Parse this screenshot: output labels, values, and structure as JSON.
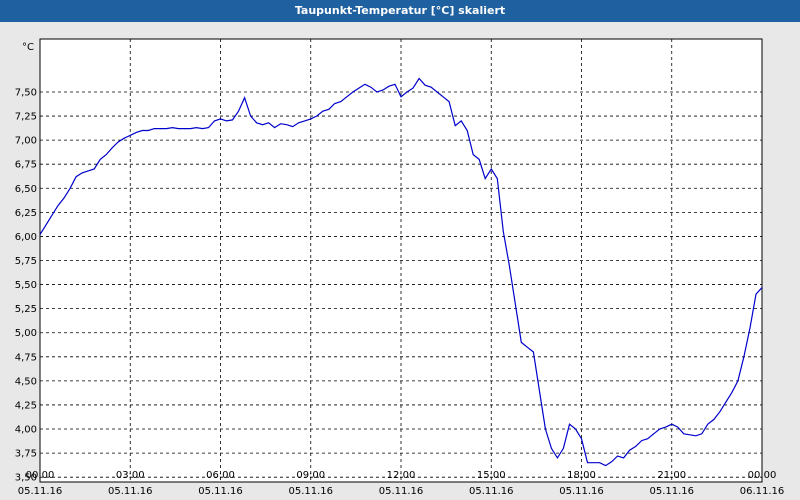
{
  "title": "Taupunkt-Temperatur [°C] skaliert",
  "colors": {
    "titlebar": "#1e60a0",
    "line": "#0000cc",
    "background": "#e8e8e8",
    "plot": "#ffffff"
  },
  "chart_data": {
    "type": "line",
    "title": "Taupunkt-Temperatur [°C] skaliert",
    "ylabel": "°C",
    "xlabel": "",
    "ylim": [
      3.45,
      8.05
    ],
    "xlim": [
      0,
      24
    ],
    "grid": true,
    "yticks": [
      "7,50",
      "7,25",
      "7,00",
      "6,75",
      "6,50",
      "6,25",
      "6,00",
      "5,75",
      "5,50",
      "5,25",
      "5,00",
      "4,75",
      "4,50",
      "4,25",
      "4,00",
      "3,75",
      "3,50"
    ],
    "ytick_values": [
      7.5,
      7.25,
      7.0,
      6.75,
      6.5,
      6.25,
      6.0,
      5.75,
      5.5,
      5.25,
      5.0,
      4.75,
      4.5,
      4.25,
      4.0,
      3.75,
      3.5
    ],
    "xticks": [
      {
        "time": "00:00",
        "date": "05.11.16"
      },
      {
        "time": "03:00",
        "date": "05.11.16"
      },
      {
        "time": "06:00",
        "date": "05.11.16"
      },
      {
        "time": "09:00",
        "date": "05.11.16"
      },
      {
        "time": "12:00",
        "date": "05.11.16"
      },
      {
        "time": "15:00",
        "date": "05.11.16"
      },
      {
        "time": "18:00",
        "date": "05.11.16"
      },
      {
        "time": "21:00",
        "date": "05.11.16"
      },
      {
        "time": "00:00",
        "date": "06.11.16"
      }
    ],
    "xtick_values": [
      0,
      3,
      6,
      9,
      12,
      15,
      18,
      21,
      24
    ],
    "series": [
      {
        "x": [
          0,
          0.2,
          0.4,
          0.6,
          0.8,
          1.0,
          1.2,
          1.4,
          1.6,
          1.8,
          2.0,
          2.2,
          2.4,
          2.6,
          2.8,
          3.0,
          3.2,
          3.4,
          3.6,
          3.8,
          4.0,
          4.2,
          4.4,
          4.6,
          4.8,
          5.0,
          5.2,
          5.4,
          5.6,
          5.8,
          6.0,
          6.2,
          6.4,
          6.6,
          6.8,
          7.0,
          7.2,
          7.4,
          7.6,
          7.8,
          8.0,
          8.2,
          8.4,
          8.6,
          8.8,
          9.0,
          9.2,
          9.4,
          9.6,
          9.8,
          10.0,
          10.2,
          10.4,
          10.6,
          10.8,
          11.0,
          11.2,
          11.4,
          11.6,
          11.8,
          12.0,
          12.2,
          12.4,
          12.6,
          12.8,
          13.0,
          13.2,
          13.4,
          13.6,
          13.8,
          14.0,
          14.2,
          14.4,
          14.6,
          14.8,
          15.0,
          15.2,
          15.4,
          15.6,
          15.8,
          16.0,
          16.2,
          16.4,
          16.6,
          16.8,
          17.0,
          17.2,
          17.4,
          17.6,
          17.8,
          18.0,
          18.2,
          18.4,
          18.6,
          18.8,
          19.0,
          19.2,
          19.4,
          19.6,
          19.8,
          20.0,
          20.2,
          20.4,
          20.6,
          20.8,
          21.0,
          21.2,
          21.4,
          21.6,
          21.8,
          22.0,
          22.2,
          22.4,
          22.6,
          22.8,
          23.0,
          23.2,
          23.4,
          23.6,
          23.8,
          24.0
        ],
        "values": [
          6.02,
          6.12,
          6.22,
          6.32,
          6.4,
          6.5,
          6.62,
          6.66,
          6.68,
          6.7,
          6.8,
          6.85,
          6.92,
          6.98,
          7.02,
          7.05,
          7.08,
          7.1,
          7.1,
          7.12,
          7.12,
          7.12,
          7.13,
          7.12,
          7.12,
          7.12,
          7.13,
          7.12,
          7.13,
          7.2,
          7.22,
          7.2,
          7.21,
          7.3,
          7.44,
          7.25,
          7.18,
          7.16,
          7.18,
          7.13,
          7.17,
          7.16,
          7.14,
          7.18,
          7.2,
          7.22,
          7.25,
          7.3,
          7.32,
          7.38,
          7.4,
          7.45,
          7.5,
          7.54,
          7.58,
          7.55,
          7.5,
          7.52,
          7.56,
          7.58,
          7.45,
          7.5,
          7.54,
          7.64,
          7.57,
          7.55,
          7.5,
          7.45,
          7.4,
          7.15,
          7.2,
          7.1,
          6.85,
          6.8,
          6.6,
          6.7,
          6.6,
          6.05,
          5.7,
          5.3,
          4.9,
          4.85,
          4.8,
          4.4,
          4.0,
          3.8,
          3.7,
          3.8,
          4.05,
          4.0,
          3.9,
          3.65,
          3.65,
          3.65,
          3.62,
          3.66,
          3.72,
          3.7,
          3.78,
          3.82,
          3.88,
          3.9,
          3.95,
          4.0,
          4.02,
          4.05,
          4.02,
          3.95,
          3.94,
          3.93,
          3.95,
          4.05,
          4.1,
          4.18,
          4.28,
          4.38,
          4.5,
          4.75,
          5.05,
          5.4,
          5.47
        ]
      }
    ]
  }
}
